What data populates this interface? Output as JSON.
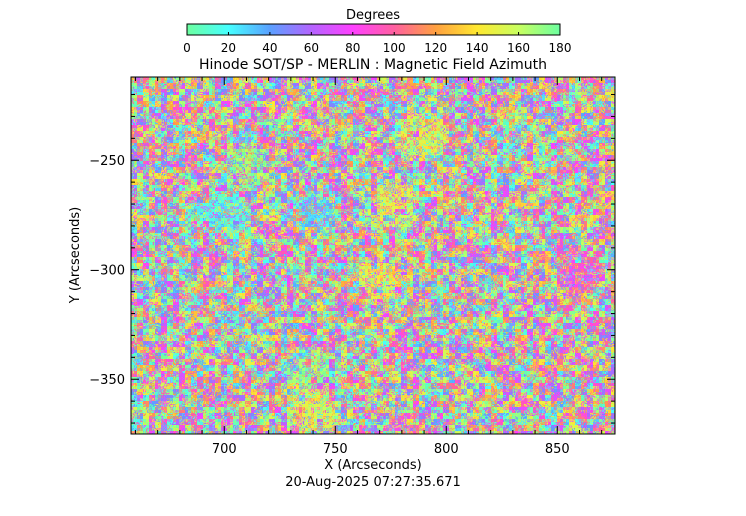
{
  "colorbar": {
    "label": "Degrees",
    "range": [
      0,
      180
    ],
    "ticks": [
      0,
      20,
      40,
      60,
      80,
      100,
      120,
      140,
      160,
      180
    ],
    "colors": [
      "#6cffa0",
      "#46ffff",
      "#5aa0ff",
      "#b464ff",
      "#ff40ff",
      "#ff60a0",
      "#ffa040",
      "#ffe830",
      "#c8ff60",
      "#6cffa0"
    ]
  },
  "chart_data": {
    "type": "heatmap",
    "title": "Hinode SOT/SP - MERLIN : Magnetic Field Azimuth",
    "xlabel": "X (Arcseconds)",
    "ylabel": "Y (Arcseconds)",
    "xlim": [
      658,
      876
    ],
    "ylim": [
      -375,
      -212
    ],
    "xticks": [
      700,
      750,
      800,
      850
    ],
    "yticks": [
      -250,
      -300,
      -350
    ],
    "value_range": [
      0,
      180
    ],
    "units": "Degrees",
    "features": [
      {
        "description": "cyan patch",
        "x": 740,
        "y": -272,
        "value": 25
      },
      {
        "description": "cyan patch",
        "x": 700,
        "y": -275,
        "value": 20
      },
      {
        "description": "yellow-green band",
        "x": 775,
        "y": -270,
        "value": 150
      },
      {
        "description": "yellow patch",
        "x": 770,
        "y": -305,
        "value": 145
      },
      {
        "description": "yellow patch",
        "x": 790,
        "y": -240,
        "value": 150
      },
      {
        "description": "green patch",
        "x": 740,
        "y": -345,
        "value": 170
      },
      {
        "description": "yellow patch",
        "x": 740,
        "y": -365,
        "value": 150
      },
      {
        "description": "green patch",
        "x": 710,
        "y": -252,
        "value": 170
      },
      {
        "description": "magenta dominated region",
        "x": 860,
        "y": -300,
        "value": 90
      }
    ]
  },
  "timestamp": "20-Aug-2025 07:27:35.671"
}
